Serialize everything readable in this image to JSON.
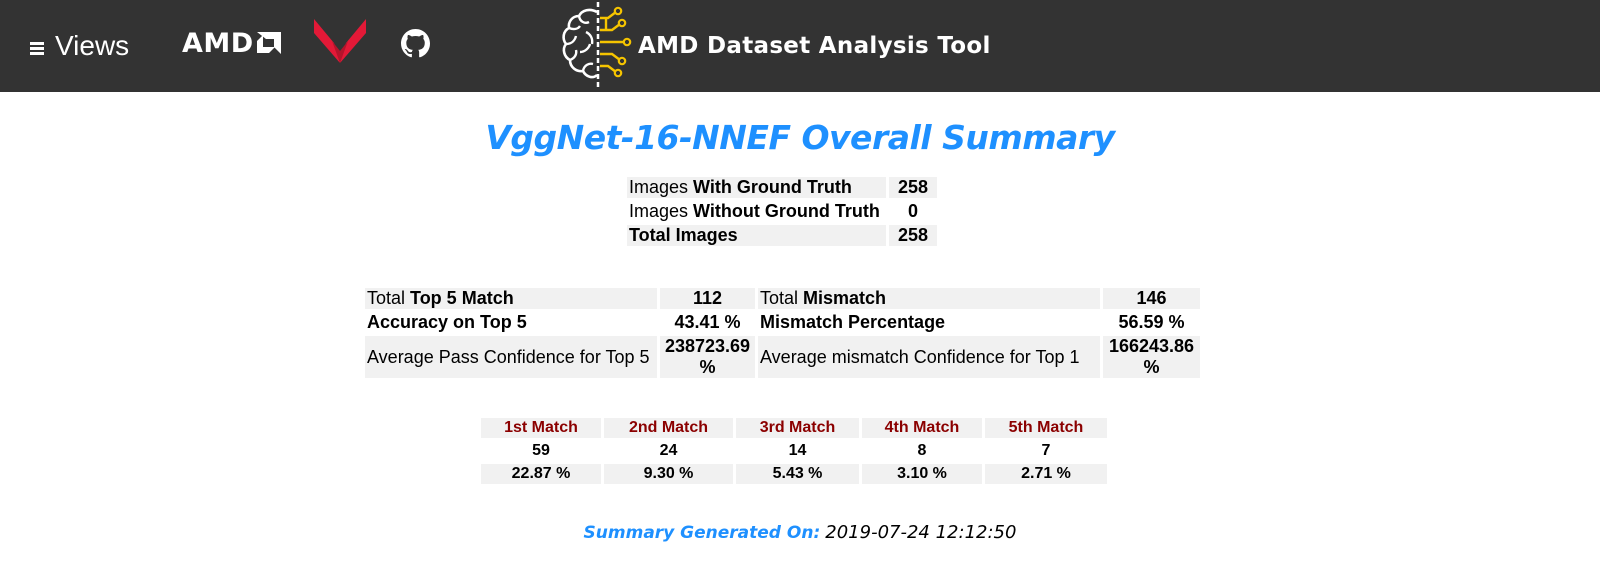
{
  "header": {
    "views_label": "Views",
    "amd_logo_text": "AMD",
    "app_title": "AMD Dataset Analysis Tool",
    "icons": [
      "hamburger-icon",
      "amd-logo",
      "ryzen-logo",
      "github-icon",
      "brain-circuit-icon"
    ],
    "colors": {
      "bar": "#333333",
      "ryzen_red": "#e31937",
      "brain_accent": "#f5c400"
    }
  },
  "page_title": "VggNet-16-NNEF Overall Summary",
  "images_table": [
    {
      "label_prefix": "Images ",
      "label_bold": "With Ground Truth",
      "value": "258"
    },
    {
      "label_prefix": "Images ",
      "label_bold": "Without Ground Truth",
      "value": "0"
    },
    {
      "label_prefix": "",
      "label_bold": "Total Images",
      "value": "258"
    }
  ],
  "stats_table": {
    "rows": [
      {
        "left_prefix": "Total ",
        "left_bold": "Top 5 Match",
        "left_value": "112",
        "right_prefix": "Total ",
        "right_bold": "Mismatch",
        "right_value": "146"
      },
      {
        "left_prefix": "",
        "left_bold": "Accuracy on Top 5",
        "left_value": "43.41 %",
        "right_prefix": "",
        "right_bold": "Mismatch Percentage",
        "right_value": "56.59 %"
      },
      {
        "left_prefix": "Average Pass Confidence for Top 5",
        "left_bold": "",
        "left_value": "238723.69 %",
        "right_prefix": "Average mismatch Confidence for Top 1",
        "right_bold": "",
        "right_value": "166243.86 %"
      }
    ]
  },
  "match_table": {
    "headers": [
      "1st Match",
      "2nd Match",
      "3rd Match",
      "4th Match",
      "5th Match"
    ],
    "counts": [
      "59",
      "24",
      "14",
      "8",
      "7"
    ],
    "percentages": [
      "22.87 %",
      "9.30 %",
      "5.43 %",
      "3.10 %",
      "2.71 %"
    ],
    "header_color": "#8b0000"
  },
  "footer": {
    "label": "Summary Generated On:",
    "value": "2019-07-24 12:12:50",
    "label_color": "#1e90ff"
  }
}
